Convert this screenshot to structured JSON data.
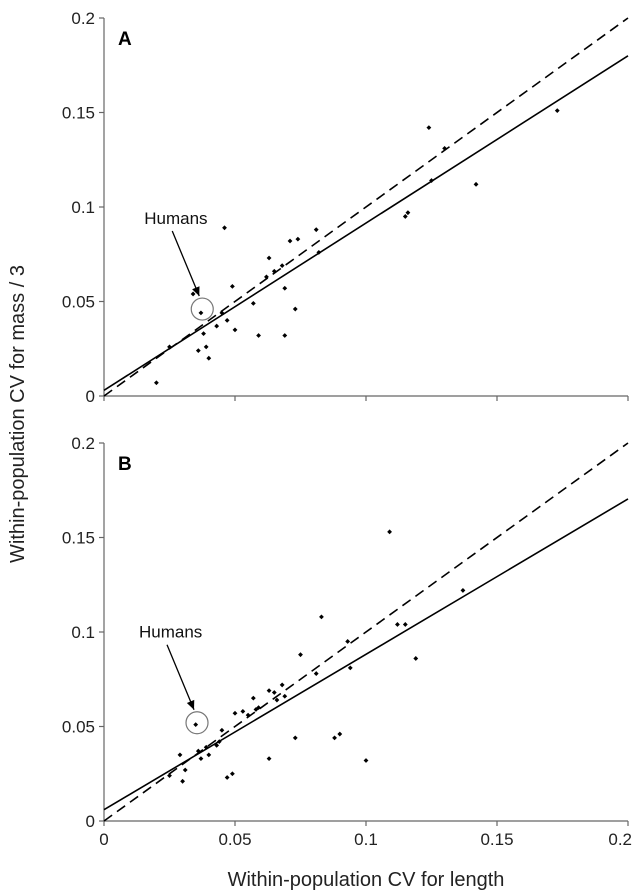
{
  "figure": {
    "ylabel": "Within-population CV for mass / 3",
    "xlabel": "Within-population CV for length"
  },
  "chart_data": [
    {
      "type": "scatter",
      "panel": "A",
      "xlim": [
        0,
        0.2
      ],
      "ylim": [
        0,
        0.2
      ],
      "x_ticks": [
        "0",
        "0.05",
        "0.1",
        "0.15",
        "0.2"
      ],
      "y_ticks": [
        "0",
        "0.05",
        "0.1",
        "0.15",
        "0.2"
      ],
      "grid": false,
      "annotation": {
        "text": "Humans",
        "x": 0.0375,
        "y": 0.046
      },
      "points": [
        [
          0.02,
          0.007
        ],
        [
          0.025,
          0.026
        ],
        [
          0.034,
          0.054
        ],
        [
          0.036,
          0.024
        ],
        [
          0.037,
          0.044
        ],
        [
          0.038,
          0.033
        ],
        [
          0.039,
          0.026
        ],
        [
          0.04,
          0.02
        ],
        [
          0.043,
          0.037
        ],
        [
          0.045,
          0.044
        ],
        [
          0.046,
          0.089
        ],
        [
          0.047,
          0.04
        ],
        [
          0.049,
          0.058
        ],
        [
          0.05,
          0.035
        ],
        [
          0.057,
          0.049
        ],
        [
          0.059,
          0.032
        ],
        [
          0.062,
          0.063
        ],
        [
          0.063,
          0.073
        ],
        [
          0.065,
          0.066
        ],
        [
          0.068,
          0.069
        ],
        [
          0.069,
          0.057
        ],
        [
          0.069,
          0.032
        ],
        [
          0.071,
          0.082
        ],
        [
          0.073,
          0.046
        ],
        [
          0.074,
          0.083
        ],
        [
          0.081,
          0.088
        ],
        [
          0.082,
          0.076
        ],
        [
          0.115,
          0.095
        ],
        [
          0.116,
          0.097
        ],
        [
          0.124,
          0.142
        ],
        [
          0.125,
          0.114
        ],
        [
          0.13,
          0.131
        ],
        [
          0.142,
          0.112
        ],
        [
          0.173,
          0.151
        ]
      ],
      "lines": [
        {
          "style": "solid",
          "color": "#000000",
          "intercept": 0.003,
          "slope": 0.885
        },
        {
          "style": "dashed",
          "color": "#000000",
          "intercept": 0.0,
          "slope": 1.0
        }
      ]
    },
    {
      "type": "scatter",
      "panel": "B",
      "xlim": [
        0,
        0.2
      ],
      "ylim": [
        0,
        0.2
      ],
      "x_ticks": [
        "0",
        "0.05",
        "0.1",
        "0.15",
        "0.2"
      ],
      "y_ticks": [
        "0",
        "0.05",
        "0.1",
        "0.15",
        "0.2"
      ],
      "grid": false,
      "annotation": {
        "text": "Humans",
        "x": 0.0355,
        "y": 0.052
      },
      "points": [
        [
          0.025,
          0.024
        ],
        [
          0.029,
          0.035
        ],
        [
          0.03,
          0.021
        ],
        [
          0.031,
          0.027
        ],
        [
          0.035,
          0.051
        ],
        [
          0.036,
          0.037
        ],
        [
          0.037,
          0.033
        ],
        [
          0.039,
          0.039
        ],
        [
          0.04,
          0.035
        ],
        [
          0.043,
          0.04
        ],
        [
          0.044,
          0.042
        ],
        [
          0.045,
          0.048
        ],
        [
          0.047,
          0.023
        ],
        [
          0.049,
          0.025
        ],
        [
          0.05,
          0.057
        ],
        [
          0.053,
          0.058
        ],
        [
          0.055,
          0.056
        ],
        [
          0.057,
          0.065
        ],
        [
          0.058,
          0.059
        ],
        [
          0.059,
          0.06
        ],
        [
          0.063,
          0.033
        ],
        [
          0.063,
          0.069
        ],
        [
          0.065,
          0.068
        ],
        [
          0.066,
          0.064
        ],
        [
          0.068,
          0.072
        ],
        [
          0.069,
          0.066
        ],
        [
          0.073,
          0.044
        ],
        [
          0.075,
          0.088
        ],
        [
          0.081,
          0.078
        ],
        [
          0.083,
          0.108
        ],
        [
          0.088,
          0.044
        ],
        [
          0.09,
          0.046
        ],
        [
          0.093,
          0.095
        ],
        [
          0.094,
          0.081
        ],
        [
          0.1,
          0.032
        ],
        [
          0.109,
          0.153
        ],
        [
          0.112,
          0.104
        ],
        [
          0.115,
          0.104
        ],
        [
          0.119,
          0.086
        ],
        [
          0.137,
          0.122
        ]
      ],
      "lines": [
        {
          "style": "solid",
          "color": "#000000",
          "intercept": 0.006,
          "slope": 0.822
        },
        {
          "style": "dashed",
          "color": "#000000",
          "intercept": 0.0,
          "slope": 1.0
        }
      ]
    }
  ]
}
